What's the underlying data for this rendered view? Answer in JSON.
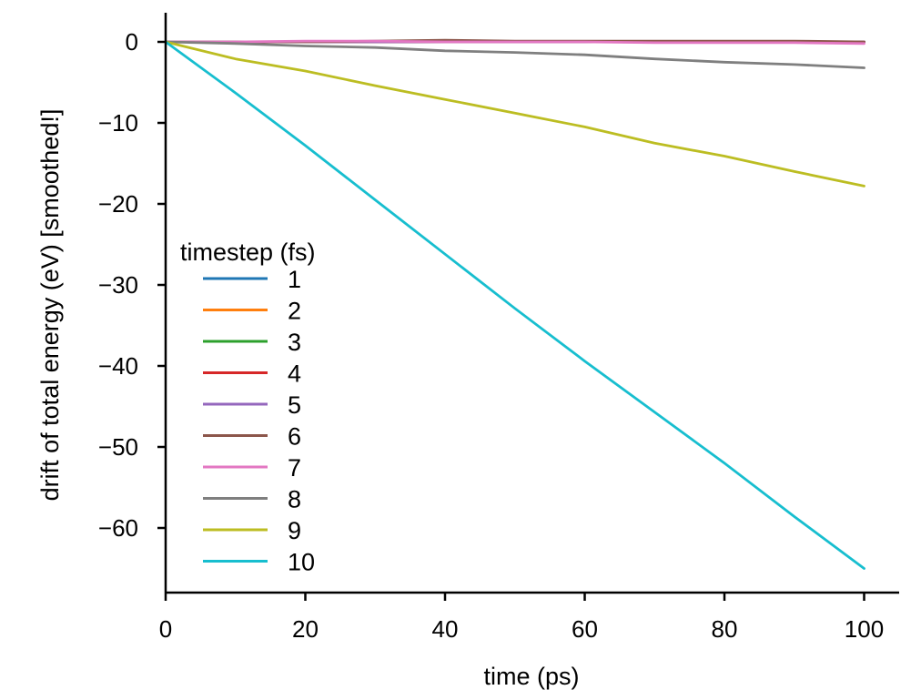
{
  "chart_data": {
    "type": "line",
    "title": "",
    "xlabel": "time (ps)",
    "ylabel": "drift of total energy (eV) [smoothed!]",
    "xlim": [
      0,
      105
    ],
    "ylim": [
      -68,
      3.5
    ],
    "xticks": [
      0,
      20,
      40,
      60,
      80,
      100
    ],
    "xtick_labels": [
      "0",
      "20",
      "40",
      "60",
      "80",
      "100"
    ],
    "yticks": [
      0,
      -10,
      -20,
      -30,
      -40,
      -50,
      -60
    ],
    "ytick_labels": [
      "0",
      "−10",
      "−20",
      "−30",
      "−40",
      "−50",
      "−60"
    ],
    "grid": false,
    "legend": {
      "title": "timestep (fs)",
      "placement": "lower-left"
    },
    "x": [
      0,
      10,
      20,
      30,
      40,
      50,
      60,
      70,
      80,
      90,
      100
    ],
    "series": [
      {
        "name": "1",
        "color": "#1f77b4",
        "values": [
          0,
          0,
          0,
          0,
          0,
          0,
          0,
          0,
          0,
          0,
          0
        ]
      },
      {
        "name": "2",
        "color": "#ff7f0e",
        "values": [
          0,
          0,
          0,
          0,
          0,
          0,
          0,
          0,
          0,
          0,
          0
        ]
      },
      {
        "name": "3",
        "color": "#2ca02c",
        "values": [
          0,
          0,
          0,
          0,
          0,
          0,
          0,
          0,
          0,
          0,
          0
        ]
      },
      {
        "name": "4",
        "color": "#d62728",
        "values": [
          0,
          0,
          0,
          0,
          0,
          0,
          0,
          0,
          0,
          0,
          0
        ]
      },
      {
        "name": "5",
        "color": "#9467bd",
        "values": [
          0,
          0,
          0,
          0,
          0,
          0,
          0,
          0,
          0,
          0,
          0
        ]
      },
      {
        "name": "6",
        "color": "#8c564b",
        "values": [
          0,
          0,
          0,
          0.1,
          0.2,
          0.1,
          0.1,
          0.1,
          0.1,
          0.1,
          0
        ]
      },
      {
        "name": "7",
        "color": "#e377c2",
        "values": [
          0,
          0,
          0.1,
          0.1,
          0,
          0,
          0,
          -0.1,
          -0.1,
          -0.1,
          -0.2
        ]
      },
      {
        "name": "8",
        "color": "#7f7f7f",
        "values": [
          0,
          -0.2,
          -0.5,
          -0.7,
          -1.1,
          -1.3,
          -1.6,
          -2.1,
          -2.5,
          -2.8,
          -3.2
        ]
      },
      {
        "name": "9",
        "color": "#bcbd22",
        "values": [
          0,
          -2.1,
          -3.6,
          -5.4,
          -7.1,
          -8.8,
          -10.5,
          -12.5,
          -14.1,
          -16.0,
          -17.8
        ]
      },
      {
        "name": "10",
        "color": "#17becf",
        "values": [
          0,
          -6.3,
          -12.8,
          -19.5,
          -26.2,
          -32.9,
          -39.4,
          -45.7,
          -52.0,
          -58.6,
          -65.0
        ]
      }
    ]
  }
}
